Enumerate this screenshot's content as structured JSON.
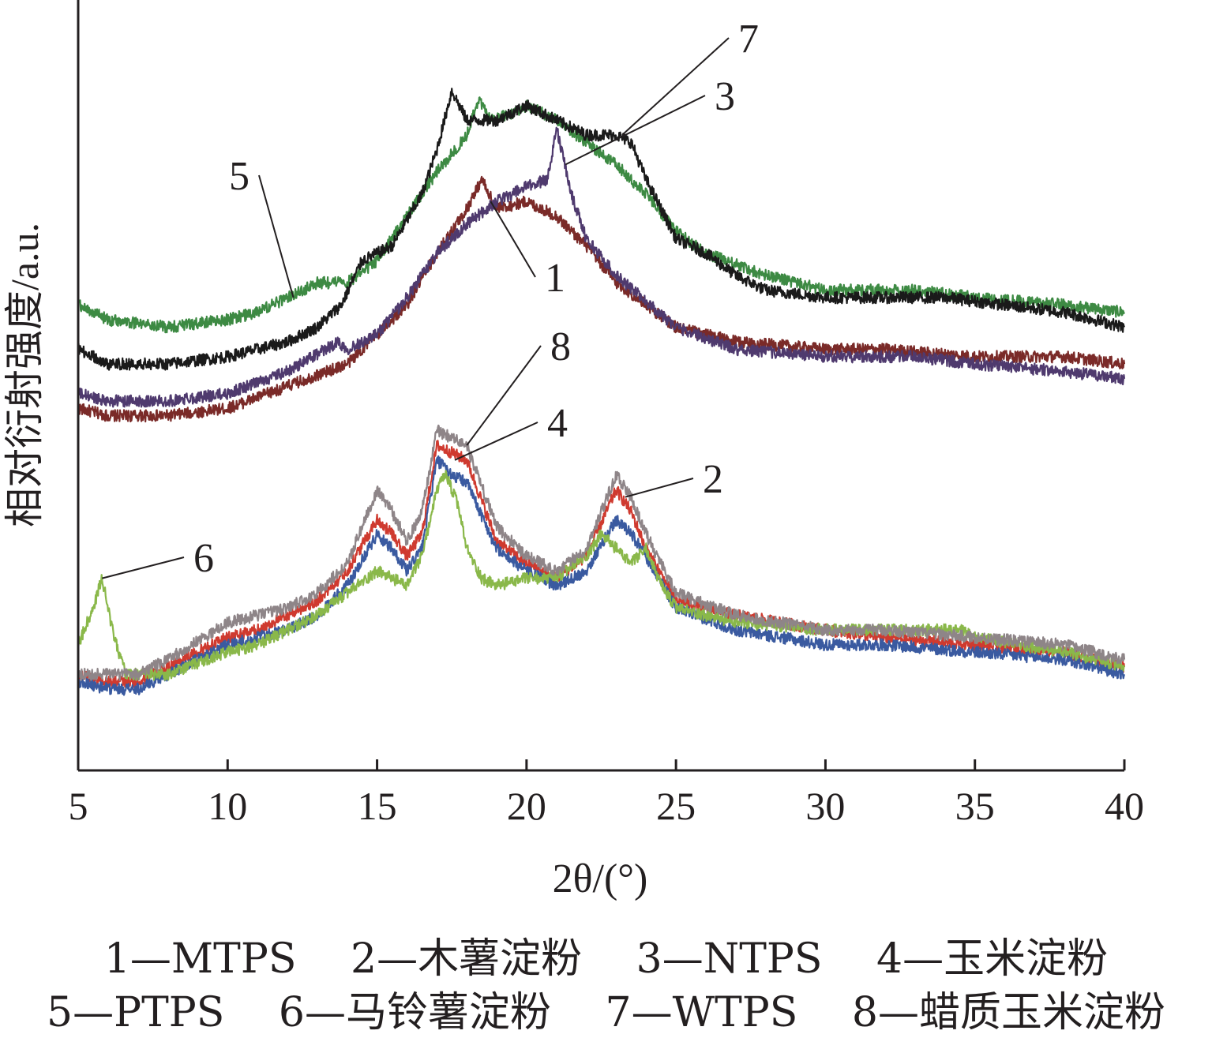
{
  "chart_data": {
    "type": "line",
    "title": "",
    "xlabel": "2θ/(°)",
    "ylabel": "相对衍射强度/a.u.",
    "xlim": [
      5,
      40
    ],
    "ylim": [
      0,
      100
    ],
    "x_ticks": [
      "5",
      "10",
      "15",
      "20",
      "25",
      "30",
      "35",
      "40"
    ],
    "y_ticks": [],
    "grid": false,
    "legend_position": "below plot",
    "legend": [
      [
        "1—MTPS",
        "2—木薯淀粉",
        "3—NTPS",
        "4—玉米淀粉"
      ],
      [
        "5—PTPS",
        "6—马铃薯淀粉",
        "7—WTPS",
        "8—蜡质玉米淀粉"
      ]
    ],
    "series": [
      {
        "label": "1",
        "color": "#7a2a28",
        "points": [
          [
            5,
            49
          ],
          [
            6,
            48
          ],
          [
            8,
            48
          ],
          [
            10,
            49
          ],
          [
            12,
            52
          ],
          [
            14,
            55
          ],
          [
            16,
            63
          ],
          [
            17,
            70
          ],
          [
            18,
            76
          ],
          [
            18.5,
            80
          ],
          [
            19,
            76
          ],
          [
            20,
            77
          ],
          [
            21,
            75
          ],
          [
            22,
            71
          ],
          [
            23,
            66
          ],
          [
            24,
            63
          ],
          [
            25,
            60
          ],
          [
            27,
            58
          ],
          [
            30,
            57
          ],
          [
            32,
            57
          ],
          [
            35,
            56
          ],
          [
            38,
            56
          ],
          [
            40,
            55
          ]
        ]
      },
      {
        "label": "2",
        "color": "#cf3a2f",
        "points": [
          [
            5,
            13
          ],
          [
            6,
            12
          ],
          [
            7,
            12
          ],
          [
            8,
            14
          ],
          [
            10,
            18
          ],
          [
            11,
            19
          ],
          [
            12,
            21
          ],
          [
            13,
            23
          ],
          [
            14,
            27
          ],
          [
            15,
            34
          ],
          [
            15.5,
            32
          ],
          [
            16,
            29
          ],
          [
            16.5,
            32
          ],
          [
            17,
            44
          ],
          [
            17.5,
            43
          ],
          [
            18,
            42
          ],
          [
            19,
            31
          ],
          [
            20,
            28
          ],
          [
            21,
            26
          ],
          [
            22,
            29
          ],
          [
            23,
            38
          ],
          [
            23.5,
            35
          ],
          [
            24,
            30
          ],
          [
            25,
            23
          ],
          [
            27,
            21
          ],
          [
            30,
            19
          ],
          [
            32,
            18
          ],
          [
            35,
            17
          ],
          [
            38,
            16
          ],
          [
            40,
            14
          ]
        ]
      },
      {
        "label": "3",
        "color": "#4f3a6e",
        "points": [
          [
            5,
            51
          ],
          [
            6,
            50
          ],
          [
            8,
            50
          ],
          [
            10,
            51
          ],
          [
            12,
            54
          ],
          [
            13.7,
            58
          ],
          [
            14,
            57
          ],
          [
            15,
            59
          ],
          [
            16,
            64
          ],
          [
            17,
            70
          ],
          [
            18,
            74
          ],
          [
            19,
            77
          ],
          [
            20,
            79
          ],
          [
            20.7,
            80
          ],
          [
            21,
            87
          ],
          [
            21.5,
            78
          ],
          [
            22,
            72
          ],
          [
            23,
            67
          ],
          [
            25,
            60
          ],
          [
            27,
            57
          ],
          [
            30,
            56
          ],
          [
            33,
            56
          ],
          [
            35,
            55
          ],
          [
            38,
            54
          ],
          [
            40,
            53
          ]
        ]
      },
      {
        "label": "4",
        "color": "#3a5aa0",
        "points": [
          [
            5,
            12
          ],
          [
            6,
            11
          ],
          [
            7,
            11
          ],
          [
            8,
            13
          ],
          [
            10,
            17
          ],
          [
            11,
            18
          ],
          [
            12,
            19
          ],
          [
            13,
            21
          ],
          [
            14,
            25
          ],
          [
            15,
            32
          ],
          [
            15.5,
            30
          ],
          [
            16,
            27
          ],
          [
            16.5,
            30
          ],
          [
            17,
            42
          ],
          [
            17.5,
            40
          ],
          [
            18,
            39
          ],
          [
            19,
            30
          ],
          [
            20,
            27
          ],
          [
            21,
            25
          ],
          [
            22,
            27
          ],
          [
            23,
            34
          ],
          [
            23.5,
            32
          ],
          [
            24,
            29
          ],
          [
            25,
            22
          ],
          [
            27,
            19
          ],
          [
            30,
            17
          ],
          [
            32,
            17
          ],
          [
            35,
            16
          ],
          [
            38,
            15
          ],
          [
            40,
            13
          ]
        ]
      },
      {
        "label": "5",
        "color": "#3d8a43",
        "points": [
          [
            5,
            63
          ],
          [
            6,
            61
          ],
          [
            8,
            60
          ],
          [
            10,
            61
          ],
          [
            11,
            62
          ],
          [
            12,
            64
          ],
          [
            13,
            66
          ],
          [
            14,
            66
          ],
          [
            15,
            69
          ],
          [
            16,
            75
          ],
          [
            17,
            81
          ],
          [
            18,
            86
          ],
          [
            18.4,
            91
          ],
          [
            18.8,
            88
          ],
          [
            19.5,
            89
          ],
          [
            20,
            90
          ],
          [
            21,
            88
          ],
          [
            22,
            85
          ],
          [
            23,
            82
          ],
          [
            24,
            78
          ],
          [
            25,
            73
          ],
          [
            26,
            70
          ],
          [
            28,
            67
          ],
          [
            30,
            65
          ],
          [
            33,
            65
          ],
          [
            35,
            64
          ],
          [
            38,
            63
          ],
          [
            40,
            62
          ]
        ]
      },
      {
        "label": "6",
        "color": "#8ab84a",
        "points": [
          [
            5,
            17
          ],
          [
            5.5,
            22
          ],
          [
            5.8,
            26
          ],
          [
            6.2,
            18
          ],
          [
            6.6,
            13
          ],
          [
            8,
            13
          ],
          [
            10,
            16
          ],
          [
            11,
            17
          ],
          [
            12,
            19
          ],
          [
            13,
            21
          ],
          [
            14,
            24
          ],
          [
            15,
            27
          ],
          [
            15.5,
            26
          ],
          [
            16,
            25
          ],
          [
            16.5,
            29
          ],
          [
            17,
            38
          ],
          [
            17.3,
            40
          ],
          [
            17.7,
            36
          ],
          [
            18,
            30
          ],
          [
            18.5,
            26
          ],
          [
            19,
            25
          ],
          [
            20,
            26
          ],
          [
            21,
            26
          ],
          [
            22,
            29
          ],
          [
            22.5,
            32
          ],
          [
            23,
            30
          ],
          [
            23.5,
            28
          ],
          [
            24,
            30
          ],
          [
            24.5,
            25
          ],
          [
            25,
            22
          ],
          [
            26,
            21
          ],
          [
            27,
            20
          ],
          [
            30,
            19
          ],
          [
            33,
            19
          ],
          [
            34.5,
            19
          ],
          [
            35,
            18
          ],
          [
            38,
            16
          ],
          [
            40,
            14
          ]
        ]
      },
      {
        "label": "7",
        "color": "#1a1a1a",
        "points": [
          [
            5,
            57
          ],
          [
            6,
            55
          ],
          [
            8,
            55
          ],
          [
            10,
            56
          ],
          [
            12,
            58
          ],
          [
            13,
            60
          ],
          [
            13.8,
            63
          ],
          [
            14.5,
            69
          ],
          [
            15.5,
            71
          ],
          [
            16.5,
            78
          ],
          [
            17,
            84
          ],
          [
            17.5,
            92
          ],
          [
            18,
            88
          ],
          [
            19,
            88
          ],
          [
            20,
            90
          ],
          [
            21,
            88
          ],
          [
            22,
            86
          ],
          [
            23,
            86
          ],
          [
            23.5,
            85
          ],
          [
            24,
            80
          ],
          [
            25,
            72
          ],
          [
            26,
            70
          ],
          [
            27,
            67
          ],
          [
            28,
            65
          ],
          [
            30,
            64
          ],
          [
            32,
            64
          ],
          [
            34,
            64
          ],
          [
            36,
            63
          ],
          [
            38,
            62
          ],
          [
            40,
            60
          ]
        ]
      },
      {
        "label": "8",
        "color": "#8e8588",
        "points": [
          [
            5,
            13
          ],
          [
            6,
            13
          ],
          [
            7,
            13
          ],
          [
            8,
            15
          ],
          [
            10,
            20
          ],
          [
            11,
            21
          ],
          [
            12,
            22
          ],
          [
            13,
            24
          ],
          [
            14,
            28
          ],
          [
            15,
            38
          ],
          [
            15.5,
            35
          ],
          [
            16,
            31
          ],
          [
            16.5,
            35
          ],
          [
            17,
            46
          ],
          [
            17.5,
            45
          ],
          [
            18,
            44
          ],
          [
            19,
            33
          ],
          [
            20,
            29
          ],
          [
            21,
            27
          ],
          [
            22,
            30
          ],
          [
            23,
            40
          ],
          [
            23.5,
            37
          ],
          [
            24,
            32
          ],
          [
            25,
            24
          ],
          [
            27,
            21
          ],
          [
            30,
            19
          ],
          [
            32,
            19
          ],
          [
            35,
            18
          ],
          [
            38,
            17
          ],
          [
            40,
            15
          ]
        ]
      }
    ]
  },
  "legend_row1": [
    "1—MTPS",
    "2—木薯淀粉",
    "3—NTPS",
    "4—玉米淀粉"
  ],
  "legend_row2": [
    "5—PTPS",
    "6—马铃薯淀粉",
    "7—WTPS",
    "8—蜡质玉米淀粉"
  ]
}
